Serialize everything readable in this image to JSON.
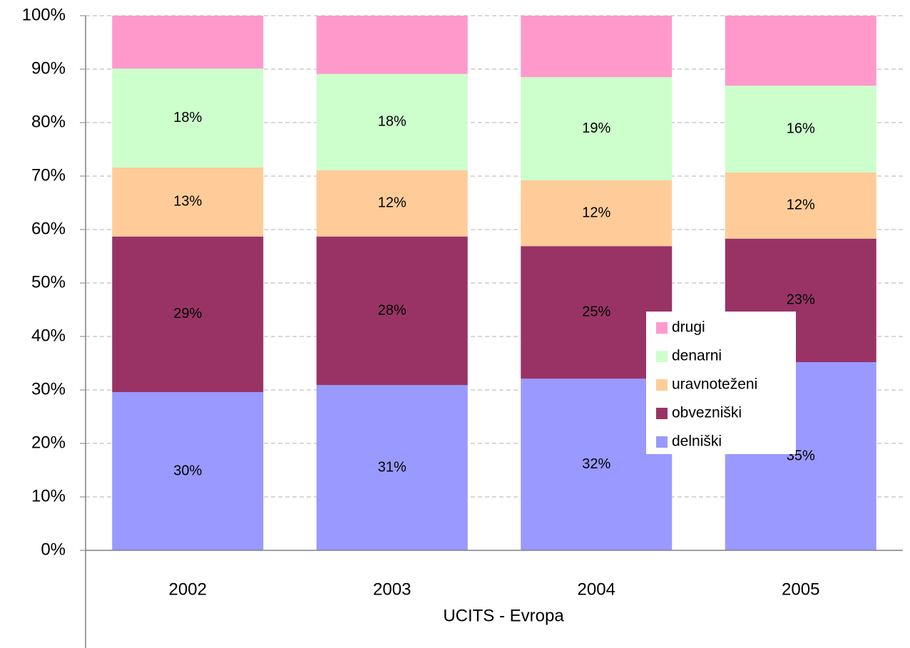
{
  "chart_data": {
    "type": "stacked_bar",
    "xlabel": "UCITS - Evropa",
    "categories": [
      "2002",
      "2003",
      "2004",
      "2005"
    ],
    "series": [
      {
        "name": "delniški",
        "color": "#9999ff",
        "values": [
          29.6,
          30.9,
          32.1,
          35.2
        ],
        "value_labels": [
          "30%",
          "31%",
          "32%",
          "35%"
        ]
      },
      {
        "name": "obvezniški",
        "color": "#993366",
        "values": [
          29.1,
          27.8,
          24.8,
          23.1
        ],
        "value_labels": [
          "29%",
          "28%",
          "25%",
          "23%"
        ]
      },
      {
        "name": "uravnoteženi",
        "color": "#ffcc99",
        "values": [
          12.9,
          12.4,
          12.3,
          12.4
        ],
        "value_labels": [
          "13%",
          "12%",
          "12%",
          "12%"
        ]
      },
      {
        "name": "denarni",
        "color": "#ccffcc",
        "values": [
          18.5,
          18.0,
          19.3,
          16.2
        ],
        "value_labels": [
          "18%",
          "18%",
          "19%",
          "16%"
        ]
      },
      {
        "name": "drugi",
        "color": "#ff99cc",
        "values": [
          9.9,
          10.9,
          11.5,
          13.1
        ]
      }
    ],
    "ylim": [
      0,
      100
    ],
    "yticks": [
      {
        "value": 0,
        "label": "0%"
      },
      {
        "value": 10,
        "label": "10%"
      },
      {
        "value": 20,
        "label": "20%"
      },
      {
        "value": 30,
        "label": "30%"
      },
      {
        "value": 40,
        "label": "40%"
      },
      {
        "value": 50,
        "label": "50%"
      },
      {
        "value": 60,
        "label": "60%"
      },
      {
        "value": 70,
        "label": "70%"
      },
      {
        "value": 80,
        "label": "80%"
      },
      {
        "value": 90,
        "label": "90%"
      },
      {
        "value": 100,
        "label": "100%"
      }
    ],
    "grid": true,
    "legend_position": "right"
  }
}
